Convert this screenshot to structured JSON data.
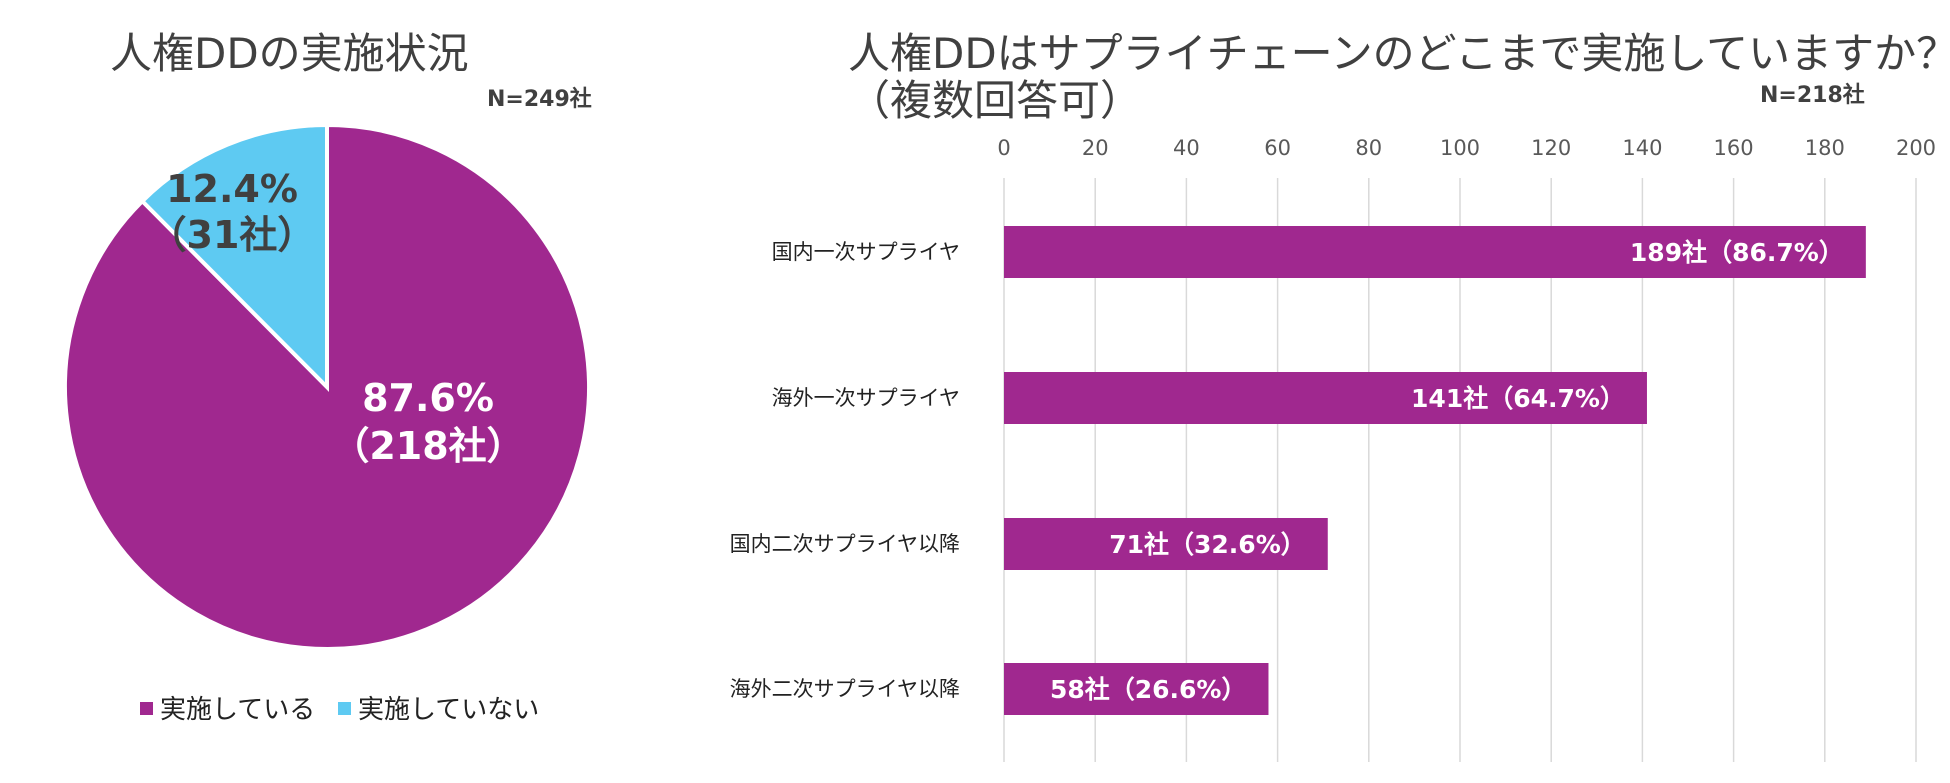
{
  "colors": {
    "implemented": "#a0288f",
    "not_implemented": "#5ecaf2",
    "bar": "#a0288f"
  },
  "pie_chart": {
    "title": "人権DDの実施状況",
    "n_label": "N=249社",
    "slices": [
      {
        "name": "実施している",
        "percent_label": "87.6%",
        "count_label": "（218社）",
        "value": 218
      },
      {
        "name": "実施していない",
        "percent_label": "12.4%",
        "count_label": "（31社）",
        "value": 31
      }
    ]
  },
  "bar_chart": {
    "title_line1": "人権DDはサプライチェーンのどこまで実施していますか？",
    "title_line2": "（複数回答可）",
    "n_label": "N=218社"
  },
  "chart_data": [
    {
      "type": "pie",
      "title": "人権DDの実施状況",
      "categories": [
        "実施している",
        "実施していない"
      ],
      "values": [
        218,
        31
      ],
      "percentages": [
        87.6,
        12.4
      ],
      "legend": "bottom"
    },
    {
      "type": "bar",
      "orientation": "horizontal",
      "title": "人権DDはサプライチェーンのどこまで実施していますか？（複数回答可）",
      "categories": [
        "国内一次サプライヤ",
        "海外一次サプライヤ",
        "国内二次サプライヤ以降",
        "海外二次サプライヤ以降"
      ],
      "values": [
        189,
        141,
        71,
        58
      ],
      "value_labels": [
        "189社（86.7%）",
        "141社（64.7%）",
        "71社（32.6%）",
        "58社（26.6%）"
      ],
      "xlim": [
        0,
        200
      ],
      "xticks": [
        0,
        20,
        40,
        60,
        80,
        100,
        120,
        140,
        160,
        180,
        200
      ],
      "grid": true
    }
  ]
}
